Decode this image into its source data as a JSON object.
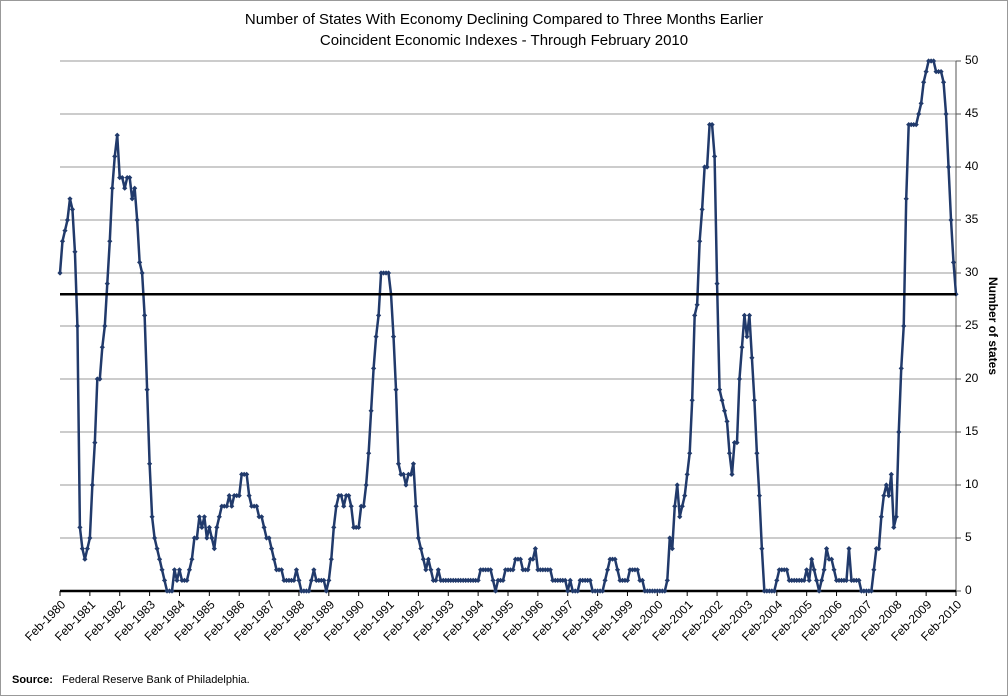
{
  "chart_data": {
    "type": "line",
    "title": "Number of States With Economy Declining Compared to Three Months Earlier",
    "subtitle": "Coincident Economic Indexes - Through February 2010",
    "y_label": "Number of states",
    "source_label": "Source:",
    "source": "Federal Reserve Bank of Philadelphia.",
    "ylim": [
      0,
      50
    ],
    "yticks": [
      0,
      5,
      10,
      15,
      20,
      25,
      30,
      35,
      40,
      45,
      50
    ],
    "grid": true,
    "reference_line": 28,
    "categories": [
      "Feb-1980",
      null,
      null,
      null,
      null,
      null,
      null,
      null,
      null,
      null,
      null,
      null,
      "Feb-1981",
      null,
      null,
      null,
      null,
      null,
      null,
      null,
      null,
      null,
      null,
      null,
      "Feb-1982",
      null,
      null,
      null,
      null,
      null,
      null,
      null,
      null,
      null,
      null,
      null,
      "Feb-1983",
      null,
      null,
      null,
      null,
      null,
      null,
      null,
      null,
      null,
      null,
      null,
      "Feb-1984",
      null,
      null,
      null,
      null,
      null,
      null,
      null,
      null,
      null,
      null,
      null,
      "Feb-1985",
      null,
      null,
      null,
      null,
      null,
      null,
      null,
      null,
      null,
      null,
      null,
      "Feb-1986",
      null,
      null,
      null,
      null,
      null,
      null,
      null,
      null,
      null,
      null,
      null,
      "Feb-1987",
      null,
      null,
      null,
      null,
      null,
      null,
      null,
      null,
      null,
      null,
      null,
      "Feb-1988",
      null,
      null,
      null,
      null,
      null,
      null,
      null,
      null,
      null,
      null,
      null,
      "Feb-1989",
      null,
      null,
      null,
      null,
      null,
      null,
      null,
      null,
      null,
      null,
      null,
      "Feb-1990",
      null,
      null,
      null,
      null,
      null,
      null,
      null,
      null,
      null,
      null,
      null,
      "Feb-1991",
      null,
      null,
      null,
      null,
      null,
      null,
      null,
      null,
      null,
      null,
      null,
      "Feb-1992",
      null,
      null,
      null,
      null,
      null,
      null,
      null,
      null,
      null,
      null,
      null,
      "Feb-1993",
      null,
      null,
      null,
      null,
      null,
      null,
      null,
      null,
      null,
      null,
      null,
      "Feb-1994",
      null,
      null,
      null,
      null,
      null,
      null,
      null,
      null,
      null,
      null,
      null,
      "Feb-1995",
      null,
      null,
      null,
      null,
      null,
      null,
      null,
      null,
      null,
      null,
      null,
      "Feb-1996",
      null,
      null,
      null,
      null,
      null,
      null,
      null,
      null,
      null,
      null,
      null,
      "Feb-1997",
      null,
      null,
      null,
      null,
      null,
      null,
      null,
      null,
      null,
      null,
      null,
      "Feb-1998",
      null,
      null,
      null,
      null,
      null,
      null,
      null,
      null,
      null,
      null,
      null,
      "Feb-1999",
      null,
      null,
      null,
      null,
      null,
      null,
      null,
      null,
      null,
      null,
      null,
      "Feb-2000",
      null,
      null,
      null,
      null,
      null,
      null,
      null,
      null,
      null,
      null,
      null,
      "Feb-2001",
      null,
      null,
      null,
      null,
      null,
      null,
      null,
      null,
      null,
      null,
      null,
      "Feb-2002",
      null,
      null,
      null,
      null,
      null,
      null,
      null,
      null,
      null,
      null,
      null,
      "Feb-2003",
      null,
      null,
      null,
      null,
      null,
      null,
      null,
      null,
      null,
      null,
      null,
      "Feb-2004",
      null,
      null,
      null,
      null,
      null,
      null,
      null,
      null,
      null,
      null,
      null,
      "Feb-2005",
      null,
      null,
      null,
      null,
      null,
      null,
      null,
      null,
      null,
      null,
      null,
      "Feb-2006",
      null,
      null,
      null,
      null,
      null,
      null,
      null,
      null,
      null,
      null,
      null,
      "Feb-2007",
      null,
      null,
      null,
      null,
      null,
      null,
      null,
      null,
      null,
      null,
      null,
      "Feb-2008",
      null,
      null,
      null,
      null,
      null,
      null,
      null,
      null,
      null,
      null,
      null,
      "Feb-2009",
      null,
      null,
      null,
      null,
      null,
      null,
      null,
      null,
      null,
      null,
      null,
      "Feb-2010"
    ],
    "color": "#213a6b",
    "values": [
      30,
      33,
      34,
      35,
      37,
      36,
      32,
      25,
      6,
      4,
      3,
      4,
      5,
      10,
      14,
      20,
      20,
      23,
      25,
      29,
      33,
      38,
      41,
      43,
      39,
      39,
      38,
      39,
      39,
      37,
      38,
      35,
      31,
      30,
      26,
      19,
      12,
      7,
      5,
      4,
      3,
      2,
      1,
      0,
      0,
      0,
      2,
      1,
      2,
      1,
      1,
      1,
      2,
      3,
      5,
      5,
      7,
      6,
      7,
      5,
      6,
      5,
      4,
      6,
      7,
      8,
      8,
      8,
      9,
      8,
      9,
      9,
      9,
      11,
      11,
      11,
      9,
      8,
      8,
      8,
      7,
      7,
      6,
      5,
      5,
      4,
      3,
      2,
      2,
      2,
      1,
      1,
      1,
      1,
      1,
      2,
      1,
      0,
      0,
      0,
      0,
      1,
      2,
      1,
      1,
      1,
      1,
      0,
      1,
      3,
      6,
      8,
      9,
      9,
      8,
      9,
      9,
      8,
      6,
      6,
      6,
      8,
      8,
      10,
      13,
      17,
      21,
      24,
      26,
      30,
      30,
      30,
      30,
      28,
      24,
      19,
      12,
      11,
      11,
      10,
      11,
      11,
      12,
      8,
      5,
      4,
      3,
      2,
      3,
      2,
      1,
      1,
      2,
      1,
      1,
      1,
      1,
      1,
      1,
      1,
      1,
      1,
      1,
      1,
      1,
      1,
      1,
      1,
      1,
      2,
      2,
      2,
      2,
      2,
      1,
      0,
      1,
      1,
      1,
      2,
      2,
      2,
      2,
      3,
      3,
      3,
      2,
      2,
      2,
      3,
      3,
      4,
      2,
      2,
      2,
      2,
      2,
      2,
      1,
      1,
      1,
      1,
      1,
      1,
      0,
      1,
      0,
      0,
      0,
      1,
      1,
      1,
      1,
      1,
      0,
      0,
      0,
      0,
      0,
      1,
      2,
      3,
      3,
      3,
      2,
      1,
      1,
      1,
      1,
      2,
      2,
      2,
      2,
      1,
      1,
      0,
      0,
      0,
      0,
      0,
      0,
      0,
      0,
      0,
      1,
      5,
      4,
      8,
      10,
      7,
      8,
      9,
      11,
      13,
      18,
      26,
      27,
      33,
      36,
      40,
      40,
      44,
      44,
      41,
      29,
      19,
      18,
      17,
      16,
      13,
      11,
      14,
      14,
      20,
      23,
      26,
      24,
      26,
      22,
      18,
      13,
      9,
      4,
      0,
      0,
      0,
      0,
      0,
      1,
      2,
      2,
      2,
      2,
      1,
      1,
      1,
      1,
      1,
      1,
      1,
      2,
      1,
      3,
      2,
      1,
      0,
      1,
      2,
      4,
      3,
      3,
      2,
      1,
      1,
      1,
      1,
      1,
      4,
      1,
      1,
      1,
      1,
      0,
      0,
      0,
      0,
      0,
      2,
      4,
      4,
      7,
      9,
      10,
      9,
      11,
      6,
      7,
      15,
      21,
      25,
      37,
      44,
      44,
      44,
      44,
      45,
      46,
      48,
      49,
      50,
      50,
      50,
      49,
      49,
      49,
      48,
      45,
      40,
      35,
      31,
      28
    ]
  }
}
